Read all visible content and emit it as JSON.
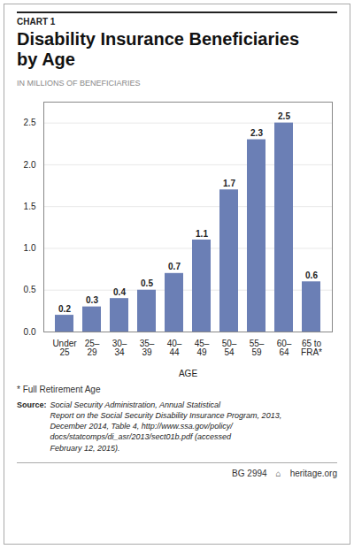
{
  "chart_data": {
    "type": "bar",
    "title": "Disability Insurance Beneficiaries\nby Age",
    "annotations": [
      "CHART 1",
      "* Full Retirement Age",
      "Source:",
      "Social Security Administration, Annual Statistical\nReport on the Social Security Disability Insurance Program, 2013,\nDecember 2014, Table 4, http://www.ssa.gov/policy/\ndocs/statcomps/di_asr/2013/sect01b.pdf (accessed\nFebruary 12, 2015).",
      "BG 2994",
      "⌂",
      "heritage.org"
    ],
    "ylabel": "IN MILLIONS OF BENEFICIARIES",
    "xlabel": "AGE",
    "categories": [
      "Under\n25",
      "25–\n29",
      "30–\n34",
      "35–\n39",
      "40–\n44",
      "45–\n49",
      "50–\n54",
      "55–\n59",
      "60–\n64",
      "65 to\nFRA*"
    ],
    "values": [
      0.2,
      0.3,
      0.4,
      0.5,
      0.7,
      1.1,
      1.7,
      2.3,
      2.5,
      0.6
    ],
    "color": "#6b7fb5",
    "ylim": [
      0,
      2.75
    ],
    "yticks": [
      {
        "value": 0,
        "label": "0.0"
      },
      0.5,
      {
        "value": 1,
        "label": "1.0"
      },
      1.5,
      {
        "value": 2,
        "label": "2.0"
      },
      2.5
    ],
    "grid": true,
    "data_labels": true
  }
}
